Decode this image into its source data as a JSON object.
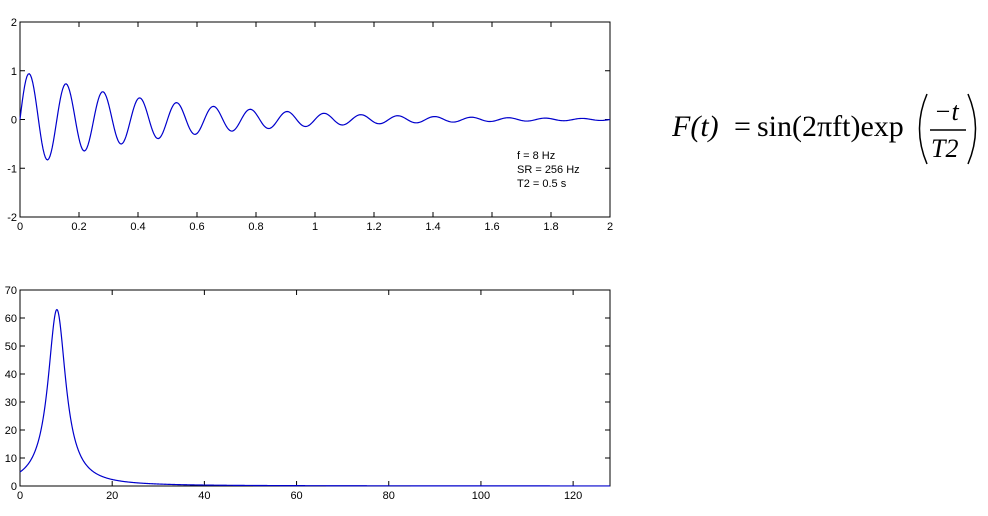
{
  "formula": {
    "lhs": "F(t)",
    "eq": "=",
    "body": "sin(2πft)exp",
    "numerator": "−t",
    "denominator": "T2"
  },
  "chart_data": [
    {
      "type": "line",
      "title": "",
      "xlabel": "",
      "ylabel": "",
      "xlim": [
        0,
        2
      ],
      "ylim": [
        -2,
        2
      ],
      "xticks": [
        0,
        0.2,
        0.4,
        0.6,
        0.8,
        1,
        1.2,
        1.4,
        1.6,
        1.8,
        2
      ],
      "xtick_labels": [
        "0",
        "0.2",
        "0.4",
        "0.6",
        "0.8",
        "1",
        "1.2",
        "1.4",
        "1.6",
        "1.8",
        "2"
      ],
      "yticks": [
        -2,
        -1,
        0,
        1,
        2
      ],
      "ytick_labels": [
        "-2",
        "-1",
        "0",
        "1",
        "2"
      ],
      "grid": false,
      "series": [
        {
          "color": "#0000cc",
          "function": "sin(2*pi*f*t)*exp(-t/T2)",
          "f": 8,
          "T2": 0.5,
          "sample_rate": 256
        }
      ],
      "annotations": [
        "f = 8 Hz",
        "SR = 256 Hz",
        "T2 = 0.5 s"
      ]
    },
    {
      "type": "line",
      "title": "",
      "xlabel": "",
      "ylabel": "",
      "xlim": [
        0,
        128
      ],
      "ylim": [
        0,
        70
      ],
      "xticks": [
        0,
        20,
        40,
        60,
        80,
        100,
        120
      ],
      "xtick_labels": [
        "0",
        "20",
        "40",
        "60",
        "80",
        "100",
        "120"
      ],
      "yticks": [
        0,
        10,
        20,
        30,
        40,
        50,
        60,
        70
      ],
      "ytick_labels": [
        "0",
        "10",
        "20",
        "30",
        "40",
        "50",
        "60",
        "70"
      ],
      "grid": false,
      "series": [
        {
          "color": "#0000cc",
          "peak_x": 8,
          "peak_y": 63,
          "baseline_at_0": 5
        }
      ]
    }
  ]
}
